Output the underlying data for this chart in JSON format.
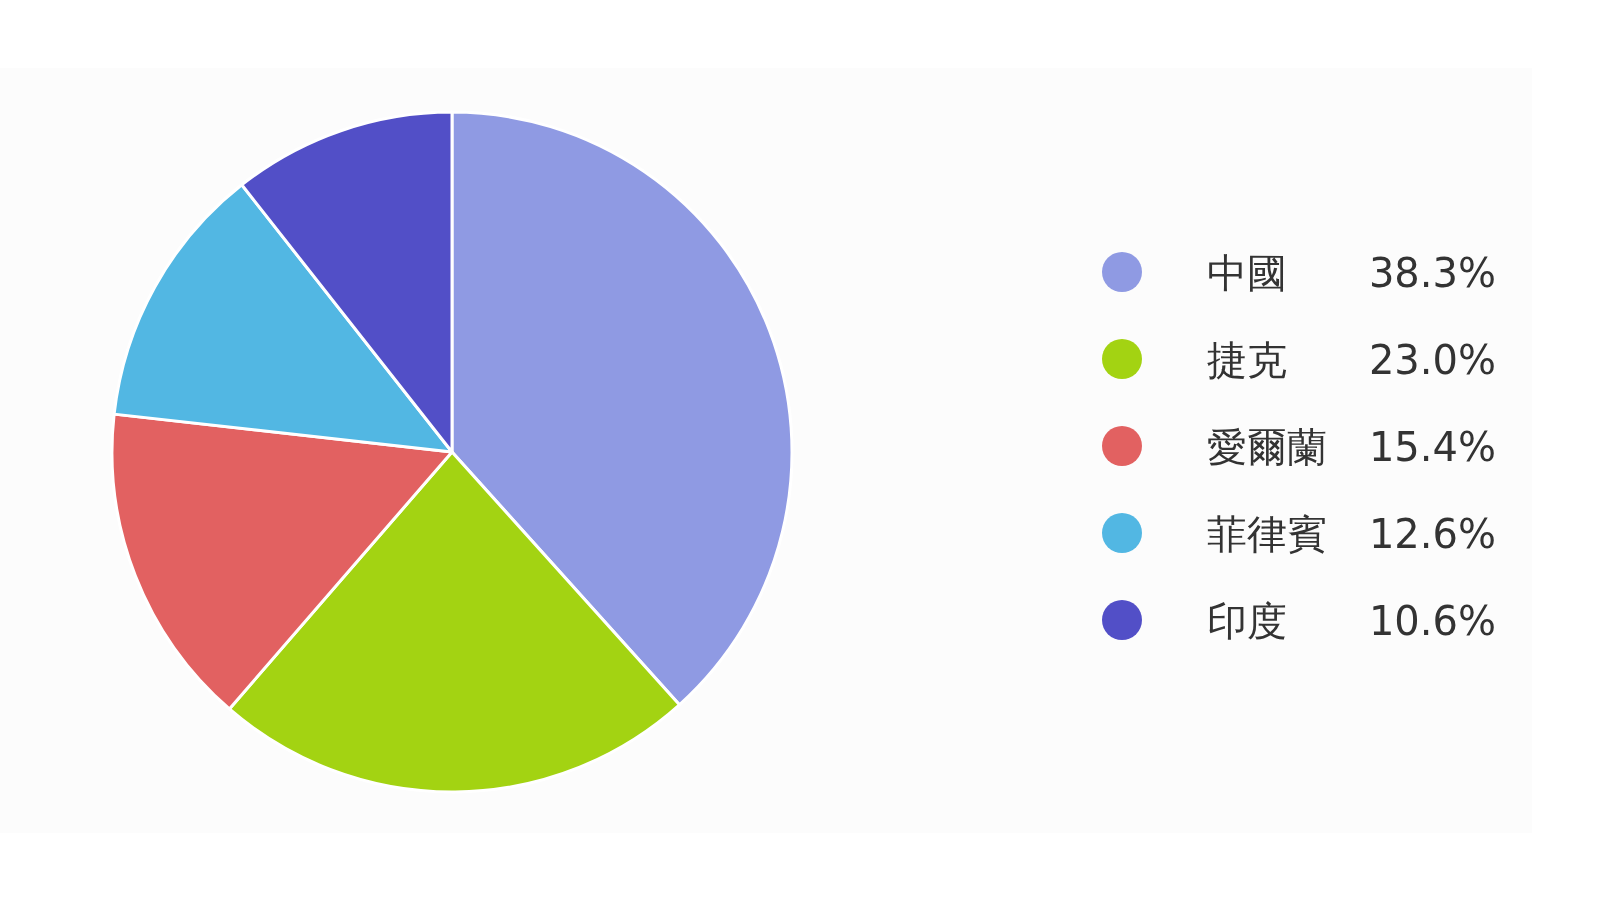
{
  "chart_data": {
    "type": "pie",
    "categories": [
      "中國",
      "捷克",
      "愛爾蘭",
      "菲律賓",
      "印度"
    ],
    "values": [
      38.3,
      23.0,
      15.4,
      12.6,
      10.6
    ],
    "colors": [
      "#8f9ae3",
      "#a3d312",
      "#e26161",
      "#52b7e3",
      "#524fc7"
    ],
    "value_labels": [
      "38.3%",
      "23.0%",
      "15.4%",
      "12.6%",
      "10.6%"
    ],
    "legend": "right"
  }
}
